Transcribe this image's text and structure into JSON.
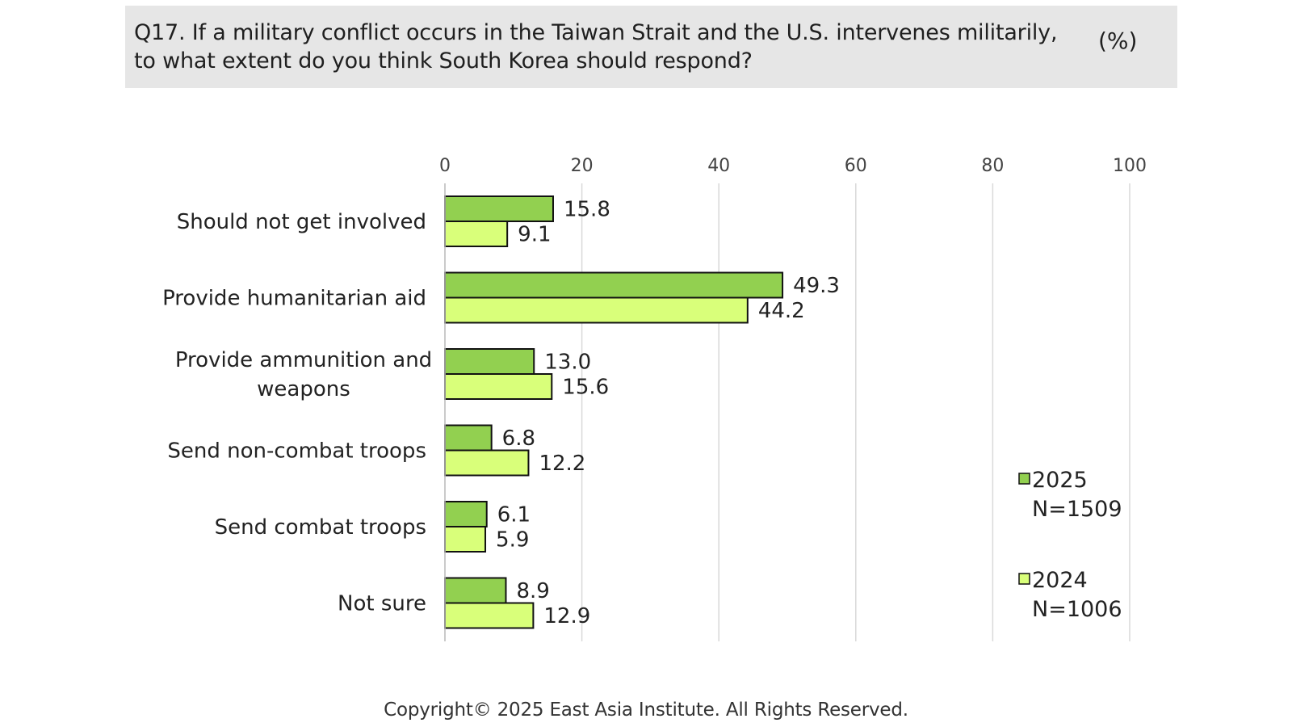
{
  "header": {
    "title_line1": "Q17. If a military conflict occurs in the Taiwan Strait and the U.S. intervenes militarily,",
    "title_line2": "to what extent do you think South Korea should respond?",
    "unit": "(%)"
  },
  "chart_data": {
    "type": "bar",
    "orientation": "horizontal",
    "categories": [
      [
        "Should not get involved"
      ],
      [
        "Provide humanitarian aid"
      ],
      [
        "Provide ammunition and",
        "weapons"
      ],
      [
        "Send non-combat troops"
      ],
      [
        "Send combat troops"
      ],
      [
        "Not sure"
      ]
    ],
    "series": [
      {
        "name": "2025",
        "sample": "N=1509",
        "color": "#92d050",
        "values": [
          15.8,
          49.3,
          13.0,
          6.8,
          6.1,
          8.9
        ],
        "labels": [
          "15.8",
          "49.3",
          "13.0",
          "6.8",
          "6.1",
          "8.9"
        ]
      },
      {
        "name": "2024",
        "sample": "N=1006",
        "color": "#d9ff7a",
        "values": [
          9.1,
          44.2,
          15.6,
          12.2,
          5.9,
          12.9
        ],
        "labels": [
          "9.1",
          "44.2",
          "15.6",
          "12.2",
          "5.9",
          "12.9"
        ]
      }
    ],
    "xlim": [
      0,
      100
    ],
    "xticks": [
      "0",
      "20",
      "40",
      "60",
      "80",
      "100"
    ],
    "xtick_values": [
      0,
      20,
      40,
      60,
      80,
      100
    ],
    "grid": true,
    "legend_position": "right"
  },
  "footer": {
    "copyright": "Copyright© 2025 East Asia Institute. All Rights Reserved."
  }
}
